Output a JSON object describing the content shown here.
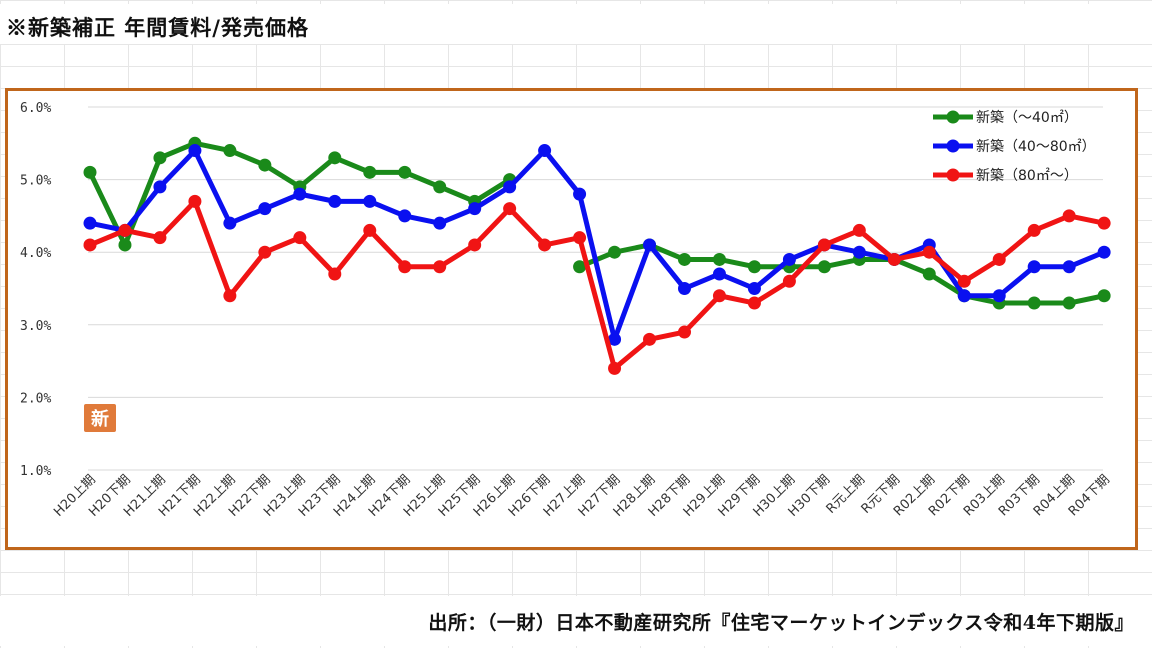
{
  "page_title": "※新築補正 年間賃料/発売価格",
  "source": "出所：（一財）日本不動産研究所『住宅マーケットインデックス令和4年下期版』",
  "badge_label": "新",
  "chart_data": {
    "type": "line",
    "title": "",
    "xlabel": "",
    "ylabel": "",
    "ylim": [
      1.0,
      6.0
    ],
    "yticks": [
      "1.0%",
      "2.0%",
      "3.0%",
      "4.0%",
      "5.0%",
      "6.0%"
    ],
    "grid": "horizontal",
    "legend_position": "top-right",
    "categories": [
      "H20上期",
      "H20下期",
      "H21上期",
      "H21下期",
      "H22上期",
      "H22下期",
      "H23上期",
      "H23下期",
      "H24上期",
      "H24下期",
      "H25上期",
      "H25下期",
      "H26上期",
      "H26下期",
      "H27上期",
      "H27下期",
      "H28上期",
      "H28下期",
      "H29上期",
      "H29下期",
      "H30上期",
      "H30下期",
      "R元上期",
      "R元下期",
      "R02上期",
      "R02下期",
      "R03上期",
      "R03下期",
      "R04上期",
      "R04下期"
    ],
    "series": [
      {
        "name": "新築（～40㎡）",
        "color": "#1a8a1a",
        "values": [
          5.1,
          4.1,
          5.3,
          5.5,
          5.4,
          5.2,
          4.9,
          5.3,
          5.1,
          5.1,
          4.9,
          4.7,
          5.0,
          null,
          3.8,
          4.0,
          4.1,
          3.9,
          3.9,
          3.8,
          3.8,
          3.8,
          3.9,
          3.9,
          3.7,
          3.4,
          3.3,
          3.3,
          3.3,
          3.4
        ]
      },
      {
        "name": "新築（40～80㎡）",
        "color": "#0a10f0",
        "values": [
          4.4,
          4.3,
          4.9,
          5.4,
          4.4,
          4.6,
          4.8,
          4.7,
          4.7,
          4.5,
          4.4,
          4.6,
          4.9,
          5.4,
          4.8,
          2.8,
          4.1,
          3.5,
          3.7,
          3.5,
          3.9,
          4.1,
          4.0,
          3.9,
          4.1,
          3.4,
          3.4,
          3.8,
          3.8,
          4.0
        ]
      },
      {
        "name": "新築（80㎡～）",
        "color": "#f01414",
        "values": [
          4.1,
          4.3,
          4.2,
          4.7,
          3.4,
          4.0,
          4.2,
          3.7,
          4.3,
          3.8,
          3.8,
          4.1,
          4.6,
          4.1,
          4.2,
          2.4,
          2.8,
          2.9,
          3.4,
          3.3,
          3.6,
          4.1,
          4.3,
          3.9,
          4.0,
          3.6,
          3.9,
          4.3,
          4.5,
          4.4
        ]
      }
    ]
  }
}
